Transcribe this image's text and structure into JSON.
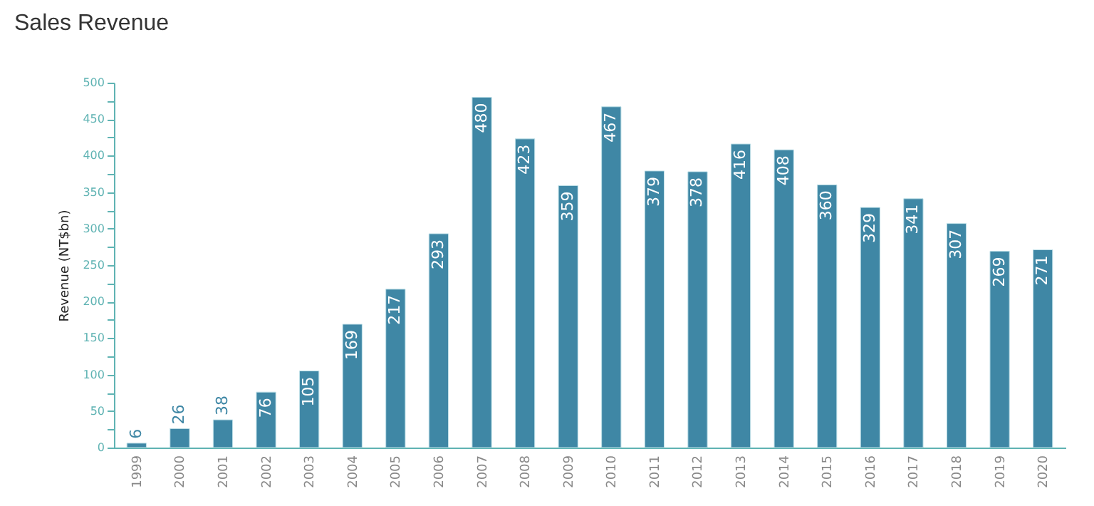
{
  "chart_data": {
    "type": "bar",
    "title": "Sales Revenue",
    "ylabel": "Revenue (NT$bn)",
    "categories": [
      "1999",
      "2000",
      "2001",
      "2002",
      "2003",
      "2004",
      "2005",
      "2006",
      "2007",
      "2008",
      "2009",
      "2010",
      "2011",
      "2012",
      "2013",
      "2014",
      "2015",
      "2016",
      "2017",
      "2018",
      "2019",
      "2020"
    ],
    "values": [
      6,
      26,
      38,
      76,
      105,
      169,
      217,
      293,
      480,
      423,
      359,
      467,
      379,
      378,
      416,
      408,
      360,
      329,
      341,
      307,
      269,
      271
    ],
    "color": "#3f87a5",
    "ylim": [
      0,
      500
    ],
    "yticks": [
      0,
      {
        "value": 25,
        "label": null
      },
      50,
      {
        "value": 75,
        "label": null
      },
      100,
      {
        "value": 125,
        "label": null
      },
      150,
      {
        "value": 175,
        "label": null
      },
      200,
      {
        "value": 225,
        "label": null
      },
      250,
      {
        "value": 275,
        "label": null
      },
      300,
      {
        "value": 325,
        "label": null
      },
      350,
      {
        "value": 375,
        "label": null
      },
      400,
      {
        "value": 425,
        "label": null
      },
      450,
      {
        "value": 475,
        "label": null
      },
      500
    ],
    "grid": false,
    "data_labels": true
  }
}
